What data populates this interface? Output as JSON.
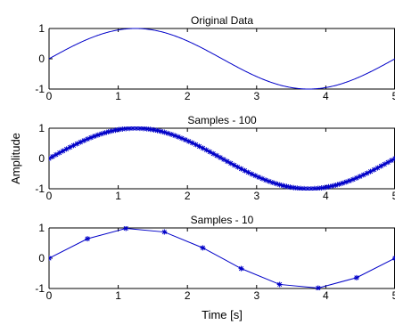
{
  "chart_data": [
    {
      "type": "line",
      "title": "Original Data",
      "xlim": [
        0,
        5
      ],
      "ylim": [
        -1,
        1
      ],
      "xticks": [
        "0",
        "1",
        "2",
        "3",
        "4",
        "5"
      ],
      "yticks": [
        "-1",
        "0",
        "1"
      ],
      "grid": false,
      "series": [
        {
          "function": "sin(2*pi*t/5)",
          "t_start": 0,
          "t_end": 5,
          "samples": 400,
          "color": "#0000c8",
          "marker": "none"
        }
      ]
    },
    {
      "type": "line",
      "title": "Samples - 100",
      "xlim": [
        0,
        5
      ],
      "ylim": [
        -1,
        1
      ],
      "xticks": [
        "0",
        "1",
        "2",
        "3",
        "4",
        "5"
      ],
      "yticks": [
        "-1",
        "0",
        "1"
      ],
      "grid": false,
      "series": [
        {
          "function": "sin(2*pi*t/5)",
          "t_start": 0,
          "t_end": 5,
          "samples": 100,
          "color": "#0000c8",
          "marker": "star"
        }
      ]
    },
    {
      "type": "line",
      "title": "Samples - 10",
      "xlim": [
        0,
        5
      ],
      "ylim": [
        -1,
        1
      ],
      "xticks": [
        "0",
        "1",
        "2",
        "3",
        "4",
        "5"
      ],
      "yticks": [
        "-1",
        "0",
        "1"
      ],
      "grid": false,
      "series": [
        {
          "function": "sin(2*pi*t/5)",
          "t_start": 0,
          "t_end": 5,
          "samples": 10,
          "color": "#0000c8",
          "marker": "star"
        }
      ]
    }
  ],
  "xlabel": "Time [s]",
  "ylabel": "Amplitude"
}
